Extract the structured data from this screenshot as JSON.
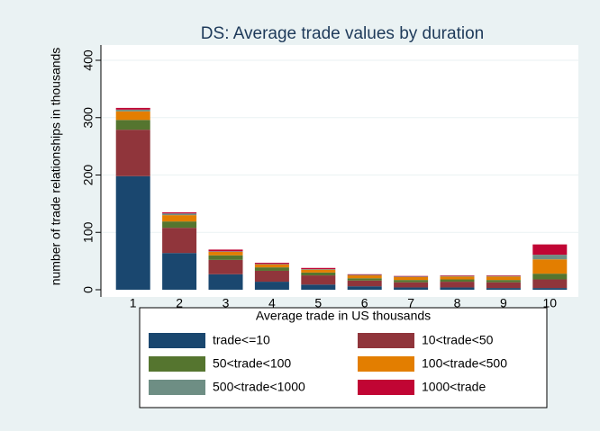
{
  "chart_data": {
    "type": "stacked_bar",
    "title": "DS: Average trade values by duration",
    "y_label": "number of trade relationships in thousands",
    "legend_title": "Average trade in US thousands",
    "categories": [
      "1",
      "2",
      "3",
      "4",
      "5",
      "6",
      "7",
      "8",
      "9",
      "10"
    ],
    "series": [
      {
        "name": "trade<=10",
        "color": "#1a476f",
        "values": [
          198,
          64,
          27,
          14,
          9,
          6,
          4,
          4,
          3,
          3
        ]
      },
      {
        "name": "10<trade<50",
        "color": "#90353b",
        "values": [
          81,
          44,
          25,
          19,
          16,
          10,
          9,
          10,
          10,
          15
        ]
      },
      {
        "name": "50<trade<100",
        "color": "#55752f",
        "values": [
          17,
          11,
          8,
          6,
          5,
          4,
          4,
          4,
          4,
          10
        ]
      },
      {
        "name": "100<trade<500",
        "color": "#e37e00",
        "values": [
          15,
          11,
          6,
          5,
          5,
          5,
          5,
          5,
          6,
          25
        ]
      },
      {
        "name": "500<trade<1000",
        "color": "#6e8e84",
        "values": [
          3,
          3,
          1,
          1,
          1,
          1,
          1,
          1,
          1,
          8
        ]
      },
      {
        "name": "1000<trade",
        "color": "#c10534",
        "values": [
          3,
          2,
          3,
          2,
          2,
          1,
          1,
          1,
          1,
          18
        ]
      }
    ],
    "ylim": [
      0,
      420
    ],
    "yticks": [
      0,
      100,
      200,
      300,
      400
    ],
    "grid": true
  }
}
